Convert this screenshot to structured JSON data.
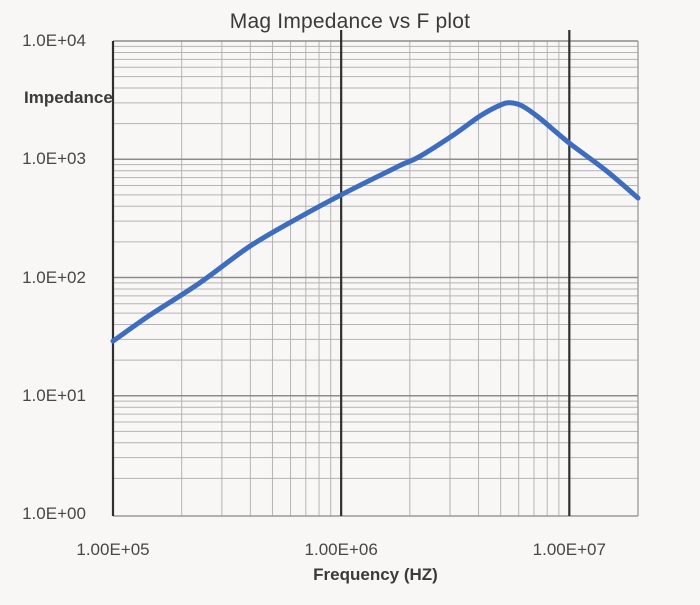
{
  "chart_data": {
    "type": "line",
    "title": "Mag Impedance vs F plot",
    "xlabel": "Frequency (HZ)",
    "ylabel": "Impedance",
    "x_scale": "log",
    "y_scale": "log",
    "xlim": [
      100000,
      20000000
    ],
    "ylim": [
      1,
      10000
    ],
    "grid": "log-log major and minor gridlines on",
    "legend": "none",
    "x_tick_labels": [
      "1.00E+05",
      "1.00E+06",
      "1.00E+07"
    ],
    "x_tick_values": [
      100000,
      1000000,
      10000000
    ],
    "y_tick_labels": [
      "1.0E+04",
      "1.0E+03",
      "1.0E+02",
      "1.0E+01",
      "1.0E+00"
    ],
    "y_tick_values": [
      10000,
      1000,
      100,
      10,
      1
    ],
    "series": [
      {
        "name": "Mag Impedance",
        "color": "#3e6cbe",
        "points": [
          [
            100000,
            29
          ],
          [
            145000,
            48
          ],
          [
            240000,
            90
          ],
          [
            400000,
            185
          ],
          [
            660000,
            325
          ],
          [
            1000000,
            500
          ],
          [
            1800000,
            880
          ],
          [
            2200000,
            1050
          ],
          [
            3100000,
            1600
          ],
          [
            4100000,
            2350
          ],
          [
            5000000,
            2880
          ],
          [
            5500000,
            3000
          ],
          [
            6200000,
            2830
          ],
          [
            7300000,
            2280
          ],
          [
            10000000,
            1370
          ],
          [
            14400000,
            810
          ],
          [
            20000000,
            470
          ]
        ]
      }
    ]
  },
  "colors": {
    "curve": "#3e6cbe",
    "grid_minor": "#b4b4b4",
    "grid_major": "#8c8c8c",
    "axis_dark": "#2f2f2f",
    "axis_gray": "#9a9a9a",
    "text": "#474747",
    "background": "#f8f7f6"
  }
}
